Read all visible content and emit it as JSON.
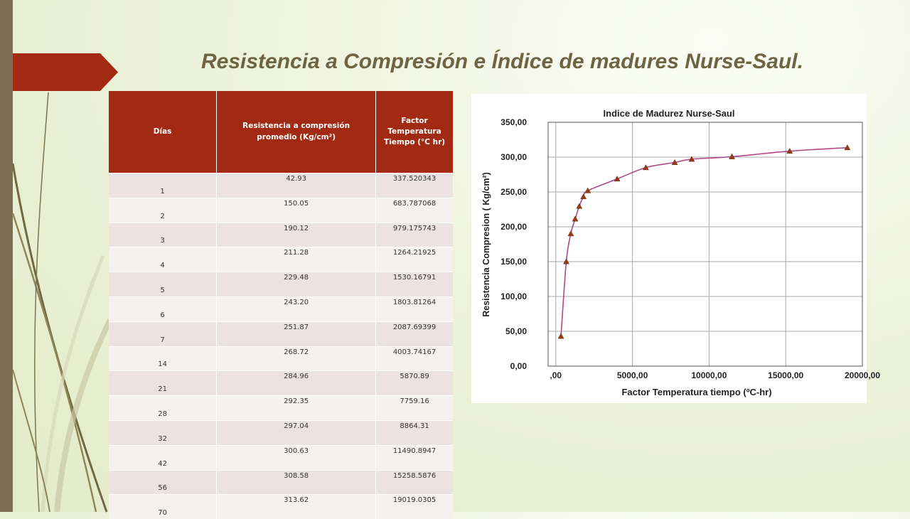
{
  "slide": {
    "title": "Resistencia a Compresión e Índice de madures Nurse-Saul."
  },
  "colors": {
    "accent": "#a32a12",
    "side_bar": "#7b6e52",
    "title_text": "#6e6444",
    "curve": "#b0488a",
    "marker": "#9a3a12"
  },
  "table": {
    "headers": [
      [
        "Días"
      ],
      [
        "Resistencia a compresión",
        "promedio (Kg/cm²)"
      ],
      [
        "Factor",
        "Temperatura",
        "Tiempo (°C hr)"
      ]
    ],
    "rows": [
      [
        "1",
        "42.93",
        "337.520343"
      ],
      [
        "2",
        "150.05",
        "683.787068"
      ],
      [
        "3",
        "190.12",
        "979.175743"
      ],
      [
        "4",
        "211.28",
        "1264.21925"
      ],
      [
        "5",
        "229.48",
        "1530.16791"
      ],
      [
        "6",
        "243.20",
        "1803.81264"
      ],
      [
        "7",
        "251.87",
        "2087.69399"
      ],
      [
        "14",
        "268.72",
        "4003.74167"
      ],
      [
        "21",
        "284.96",
        "5870.89"
      ],
      [
        "28",
        "292.35",
        "7759.16"
      ],
      [
        "32",
        "297.04",
        "8864.31"
      ],
      [
        "42",
        "300.63",
        "11490.8947"
      ],
      [
        "56",
        "308.58",
        "15258.5876"
      ],
      [
        "70",
        "313.62",
        "19019.0305"
      ]
    ]
  },
  "chart_data": {
    "type": "scatter",
    "title": "Indice de Madurez Nurse-Saul",
    "xlabel": "Factor Temperatura tiempo (ºC-hr)",
    "ylabel": "Resistencia Compresion ( Kg/cm²)",
    "xlim": [
      -500,
      20000
    ],
    "ylim": [
      0,
      350
    ],
    "x_ticks": [
      0,
      5000,
      10000,
      15000,
      20000
    ],
    "x_tick_labels": [
      ",00",
      "5000,00",
      "10000,00",
      "15000,00",
      "20000,00"
    ],
    "y_ticks": [
      0,
      50,
      100,
      150,
      200,
      250,
      300,
      350
    ],
    "y_tick_labels": [
      "0,00",
      "50,00",
      "100,00",
      "150,00",
      "200,00",
      "250,00",
      "300,00",
      "350,00"
    ],
    "grid": true,
    "marker": "triangle",
    "smooth_line": true,
    "x": [
      337.520343,
      683.787068,
      979.175743,
      1264.21925,
      1530.16791,
      1803.81264,
      2087.69399,
      4003.74167,
      5870.89,
      7759.16,
      8864.31,
      11490.8947,
      15258.5876,
      19019.0305
    ],
    "y": [
      42.93,
      150.05,
      190.12,
      211.28,
      229.48,
      243.2,
      251.87,
      268.72,
      284.96,
      292.35,
      297.04,
      300.63,
      308.58,
      313.62
    ]
  }
}
